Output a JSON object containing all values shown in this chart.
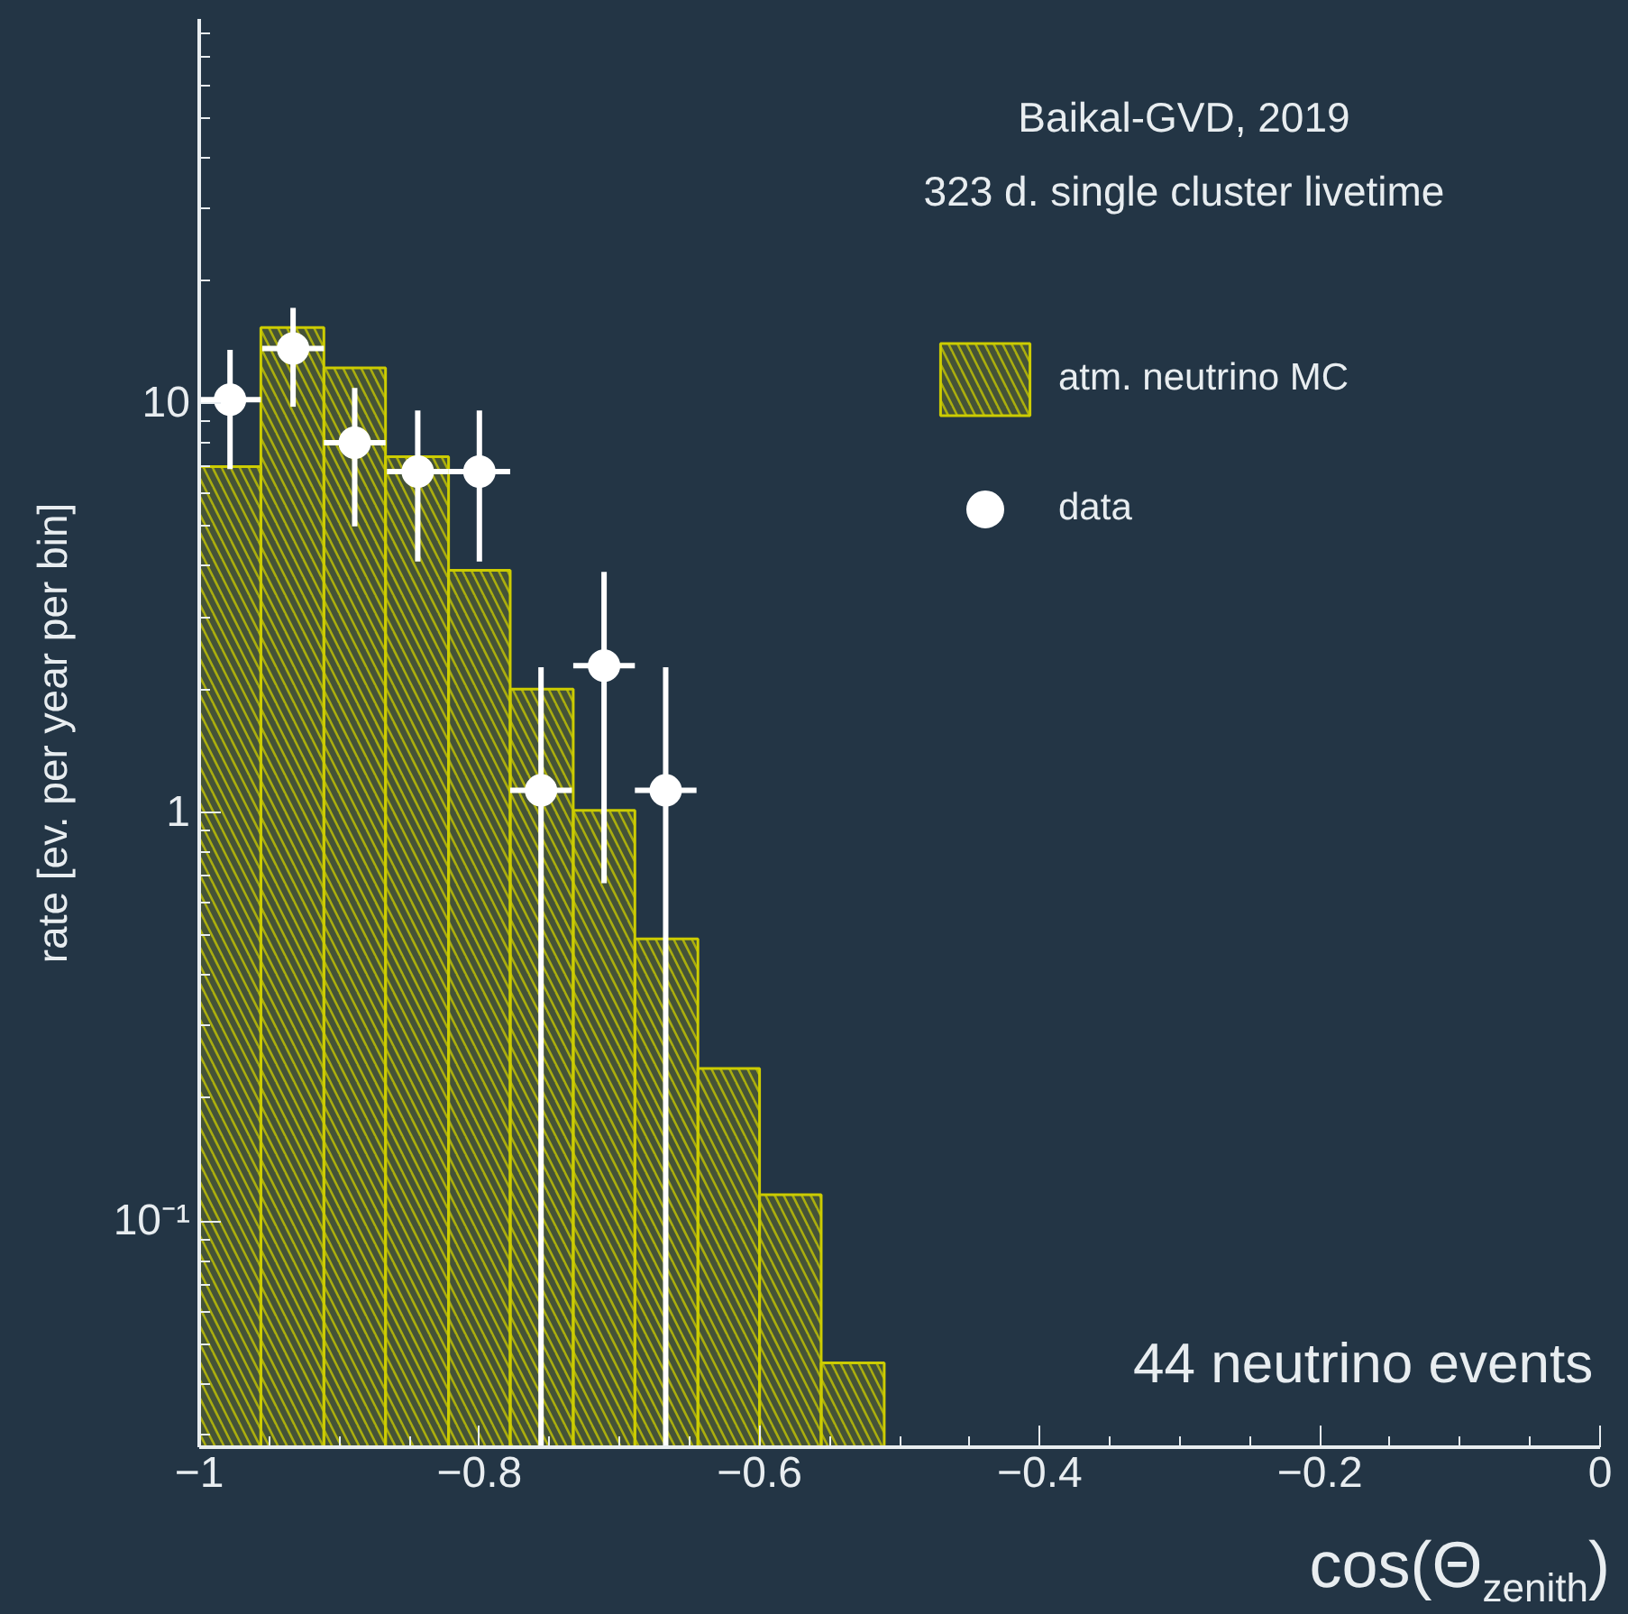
{
  "chart_data": {
    "type": "histogram",
    "xlabel": "cos(Θ$_{zenith}$)",
    "ylabel": "rate [ev. per year per bin]",
    "annotations": [
      "Baikal-GVD, 2019",
      "323 d. single cluster livetime",
      "44 neutrino events"
    ],
    "bins": [
      -1,
      -0.956,
      -0.911,
      -0.867,
      -0.822,
      -0.778,
      -0.733,
      -0.689,
      -0.644,
      -0.6,
      -0.556,
      -0.511
    ],
    "series": [
      {
        "name": "atm. neutrino MC",
        "color": "#cccc00",
        "values": [
          7.0,
          15.3,
          12.2,
          7.4,
          3.9,
          2.0,
          1.01,
          0.49,
          0.236,
          0.116,
          0.045
        ]
      },
      {
        "name": "data",
        "type": "scatter",
        "color": "#ffffff",
        "x": [
          -0.978,
          -0.933,
          -0.889,
          -0.844,
          -0.8,
          -0.756,
          -0.711,
          -0.667
        ],
        "values": [
          10.2,
          13.6,
          8.0,
          6.8,
          6.8,
          1.13,
          2.28,
          1.13
        ],
        "errors": [
          [
            6.9,
            13.5
          ],
          [
            9.8,
            17.1
          ],
          [
            5.0,
            10.9
          ],
          [
            4.1,
            9.6
          ],
          [
            4.1,
            9.6
          ],
          [
            0.028,
            2.26
          ],
          [
            0.67,
            3.87
          ],
          [
            0.028,
            2.26
          ]
        ],
        "xerrors": [
          0.022,
          0.022,
          0.022,
          0.022,
          0.022,
          0.022,
          0.022,
          0.022
        ]
      }
    ],
    "xlim": [
      -1,
      0
    ],
    "ylim": [
      0.028,
      87
    ],
    "log": "y",
    "xticks": [
      {
        "value": -1,
        "label": "−1"
      },
      {
        "value": -0.8,
        "label": "−0.8"
      },
      {
        "value": -0.6,
        "label": "−0.6"
      },
      {
        "value": -0.4,
        "label": "−0.4"
      },
      {
        "value": -0.2,
        "label": "−0.2"
      },
      0
    ],
    "yticks": [
      {
        "value": 0.1,
        "label": "10⁻¹"
      },
      1,
      10
    ],
    "legend": "top right",
    "grid": false,
    "marker": "circle"
  }
}
